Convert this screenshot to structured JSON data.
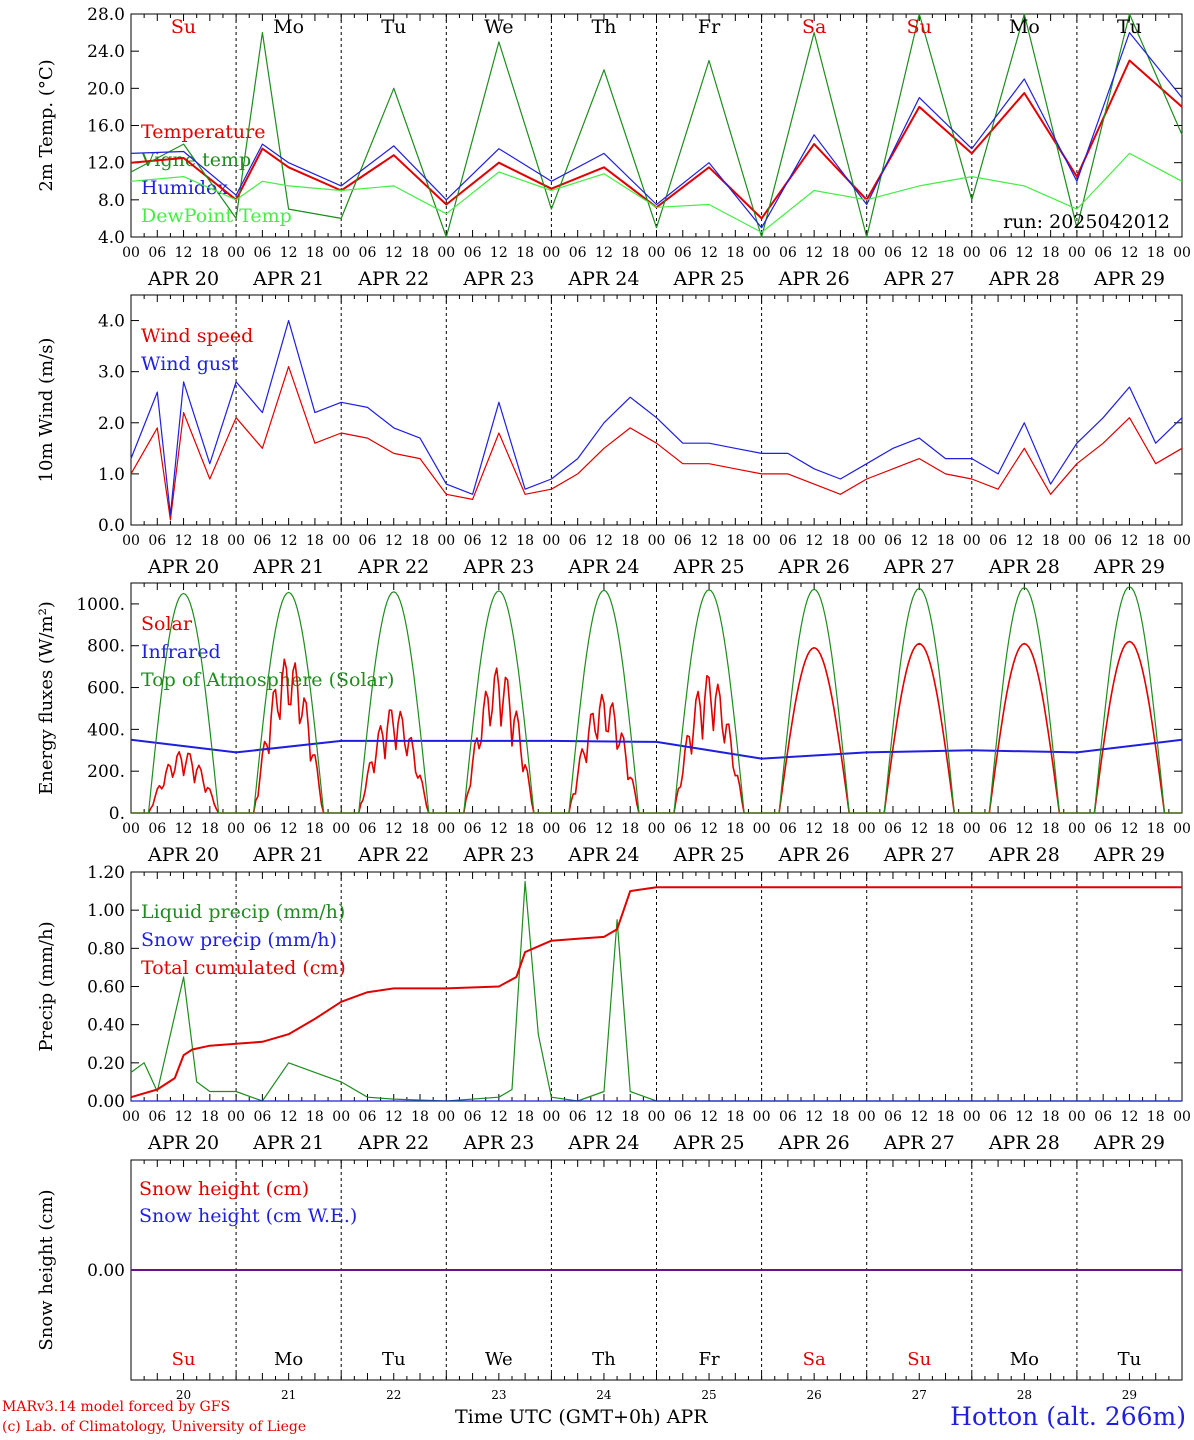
{
  "chart_data": [
    {
      "type": "line",
      "ylabel": "2m Temp. (°C)",
      "ylim": [
        4.0,
        28.0
      ],
      "yticks": [
        "4.0",
        "8.0",
        "12.0",
        "16.0",
        "20.0",
        "24.0",
        "28.0"
      ],
      "run_label": "run: 2025042012",
      "x_hours": [
        0,
        12,
        24,
        30,
        36,
        48,
        60,
        72,
        84,
        96,
        108,
        120,
        132,
        144,
        156,
        168,
        180,
        192,
        204,
        216,
        228,
        240
      ],
      "series": [
        {
          "name": "Temperature",
          "color": "#e00000",
          "values": [
            12.0,
            12.5,
            8.0,
            13.5,
            11.5,
            9.0,
            12.8,
            7.5,
            12.0,
            9.2,
            11.5,
            7.2,
            11.5,
            6.0,
            14.0,
            8.0,
            18.0,
            13.0,
            19.5,
            10.5,
            23.0,
            18.0
          ]
        },
        {
          "name": "Vigne temp",
          "color": "#1e8c1e",
          "values": [
            11.0,
            14.0,
            6.0,
            26.0,
            7.0,
            6.0,
            20.0,
            4.0,
            25.0,
            7.0,
            22.0,
            5.0,
            23.0,
            4.0,
            26.0,
            4.0,
            28.0,
            8.0,
            28.0,
            5.0,
            28.0,
            15.0
          ]
        },
        {
          "name": "Humidex",
          "color": "#1f1fe0",
          "values": [
            13.0,
            13.2,
            8.5,
            14.0,
            12.0,
            9.5,
            13.8,
            8.0,
            13.5,
            10.0,
            13.0,
            7.5,
            12.0,
            5.0,
            15.0,
            7.5,
            19.0,
            13.5,
            21.0,
            10.0,
            26.0,
            19.0
          ]
        },
        {
          "name": "DewPoint Temp",
          "color": "#44ee44",
          "values": [
            10.0,
            10.5,
            8.0,
            10.0,
            9.5,
            9.0,
            9.5,
            6.5,
            11.0,
            9.0,
            10.8,
            7.2,
            7.5,
            4.5,
            9.0,
            8.0,
            9.5,
            10.5,
            9.5,
            7.0,
            13.0,
            10.0
          ]
        }
      ]
    },
    {
      "type": "line",
      "ylabel": "10m Wind (m/s)",
      "ylim": [
        0.0,
        4.5
      ],
      "yticks": [
        "0.0",
        "1.0",
        "2.0",
        "3.0",
        "4.0"
      ],
      "x_hours": [
        0,
        6,
        9,
        12,
        18,
        24,
        30,
        36,
        42,
        48,
        54,
        60,
        66,
        72,
        78,
        84,
        90,
        96,
        102,
        108,
        114,
        120,
        126,
        132,
        138,
        144,
        150,
        156,
        162,
        168,
        174,
        180,
        186,
        192,
        198,
        204,
        210,
        216,
        222,
        228,
        234,
        240
      ],
      "series": [
        {
          "name": "Wind speed",
          "color": "#e00000",
          "values": [
            1.0,
            1.9,
            0.1,
            2.2,
            0.9,
            2.1,
            1.5,
            3.1,
            1.6,
            1.8,
            1.7,
            1.4,
            1.3,
            0.6,
            0.5,
            1.8,
            0.6,
            0.7,
            1.0,
            1.5,
            1.9,
            1.6,
            1.2,
            1.2,
            1.1,
            1.0,
            1.0,
            0.8,
            0.6,
            0.9,
            1.1,
            1.3,
            1.0,
            0.9,
            0.7,
            1.5,
            0.6,
            1.2,
            1.6,
            2.1,
            1.2,
            1.5
          ]
        },
        {
          "name": "Wind gust",
          "color": "#1f1fe0",
          "values": [
            1.3,
            2.6,
            0.2,
            2.8,
            1.2,
            2.8,
            2.2,
            4.0,
            2.2,
            2.4,
            2.3,
            1.9,
            1.7,
            0.8,
            0.6,
            2.4,
            0.7,
            0.9,
            1.3,
            2.0,
            2.5,
            2.1,
            1.6,
            1.6,
            1.5,
            1.4,
            1.4,
            1.1,
            0.9,
            1.2,
            1.5,
            1.7,
            1.3,
            1.3,
            1.0,
            2.0,
            0.8,
            1.6,
            2.1,
            2.7,
            1.6,
            2.1
          ]
        }
      ]
    },
    {
      "type": "line",
      "ylabel": "Energy fluxes (W/m²)",
      "ylim": [
        0,
        1100
      ],
      "yticks": [
        "0.",
        "200.",
        "400.",
        "600.",
        "800.",
        "1000."
      ],
      "series": [
        {
          "name": "Solar",
          "color": "#e00000",
          "daily_peaks": [
            300,
            750,
            510,
            700,
            570,
            670,
            790,
            810,
            810,
            820
          ]
        },
        {
          "name": "Infrared",
          "color": "#1f1fe0",
          "x_hours": [
            0,
            24,
            48,
            72,
            96,
            120,
            144,
            168,
            192,
            216,
            240
          ],
          "values": [
            350,
            290,
            345,
            345,
            345,
            340,
            260,
            290,
            300,
            290,
            350
          ]
        },
        {
          "name": "Top of Atmosphere (Solar)",
          "color": "#1e8c1e",
          "daily_peaks": [
            1050,
            1055,
            1058,
            1062,
            1065,
            1068,
            1070,
            1074,
            1078,
            1082
          ]
        }
      ]
    },
    {
      "type": "line",
      "ylabel": "Precip (mm/h)",
      "ylim": [
        0.0,
        1.2
      ],
      "yticks": [
        "0.00",
        "0.20",
        "0.40",
        "0.60",
        "0.80",
        "1.00",
        "1.20"
      ],
      "series": [
        {
          "name": "Liquid precip (mm/h)",
          "color": "#1e8c1e",
          "x_hours": [
            0,
            3,
            6,
            12,
            15,
            18,
            24,
            30,
            36,
            42,
            48,
            54,
            60,
            72,
            84,
            87,
            90,
            93,
            96,
            102,
            108,
            111,
            114,
            120,
            132,
            144,
            168,
            192,
            216,
            240
          ],
          "values": [
            0.15,
            0.2,
            0.05,
            0.65,
            0.1,
            0.05,
            0.05,
            0.0,
            0.2,
            0.15,
            0.1,
            0.02,
            0.01,
            0.0,
            0.02,
            0.06,
            1.15,
            0.35,
            0.02,
            0.0,
            0.05,
            0.95,
            0.05,
            0.0,
            0.0,
            0.0,
            0.0,
            0.0,
            0.0,
            0.0
          ]
        },
        {
          "name": "Snow precip (mm/h)",
          "color": "#1f1fe0",
          "x_hours": [
            0,
            240
          ],
          "values": [
            0,
            0
          ]
        },
        {
          "name": "Total cumulated (cm)",
          "color": "#e00000",
          "x_hours": [
            0,
            6,
            10,
            12,
            14,
            18,
            24,
            30,
            36,
            42,
            48,
            54,
            60,
            72,
            84,
            88,
            90,
            96,
            102,
            108,
            111,
            114,
            120,
            144,
            168,
            192,
            216,
            240
          ],
          "values": [
            0.02,
            0.06,
            0.12,
            0.24,
            0.27,
            0.29,
            0.3,
            0.31,
            0.35,
            0.43,
            0.52,
            0.57,
            0.59,
            0.59,
            0.6,
            0.65,
            0.78,
            0.84,
            0.85,
            0.86,
            0.9,
            1.1,
            1.12,
            1.12,
            1.12,
            1.12,
            1.12,
            1.12
          ]
        }
      ]
    },
    {
      "type": "line",
      "ylabel": "Snow height (cm)",
      "yticks": [
        "0.00"
      ],
      "series": [
        {
          "name": "Snow height (cm)",
          "color": "#e00000",
          "x_hours": [
            0,
            240
          ],
          "values": [
            0,
            0
          ]
        },
        {
          "name": "Snow height (cm W.E.)",
          "color": "#1f1fe0",
          "x_hours": [
            0,
            240
          ],
          "values": [
            0,
            0
          ]
        }
      ]
    }
  ],
  "days": [
    {
      "abbr": "Su",
      "label": "APR 20",
      "num": "20",
      "weekend": true
    },
    {
      "abbr": "Mo",
      "label": "APR 21",
      "num": "21",
      "weekend": false
    },
    {
      "abbr": "Tu",
      "label": "APR 22",
      "num": "22",
      "weekend": false
    },
    {
      "abbr": "We",
      "label": "APR 23",
      "num": "23",
      "weekend": false
    },
    {
      "abbr": "Th",
      "label": "APR 24",
      "num": "24",
      "weekend": false
    },
    {
      "abbr": "Fr",
      "label": "APR 25",
      "num": "25",
      "weekend": false
    },
    {
      "abbr": "Sa",
      "label": "APR 26",
      "num": "26",
      "weekend": true
    },
    {
      "abbr": "Su",
      "label": "APR 27",
      "num": "27",
      "weekend": true
    },
    {
      "abbr": "Mo",
      "label": "APR 28",
      "num": "28",
      "weekend": false
    },
    {
      "abbr": "Tu",
      "label": "APR 29",
      "num": "29",
      "weekend": false
    }
  ],
  "hour_ticks": [
    "00",
    "06",
    "12",
    "18"
  ],
  "hour_end": "00",
  "footer": {
    "model_line": "MARv3.14 model forced by GFS",
    "credit_line": "(c) Lab. of Climatology, University of Liege",
    "time_axis_label": "Time UTC (GMT+0h) APR",
    "station": "Hotton (alt. 266m)"
  },
  "colors": {
    "red": "#e00000",
    "blue": "#1f1fe0",
    "green": "#1e8c1e",
    "lightgreen": "#44ee44",
    "weekend_day": "#e00000",
    "weekday": "#000000"
  }
}
